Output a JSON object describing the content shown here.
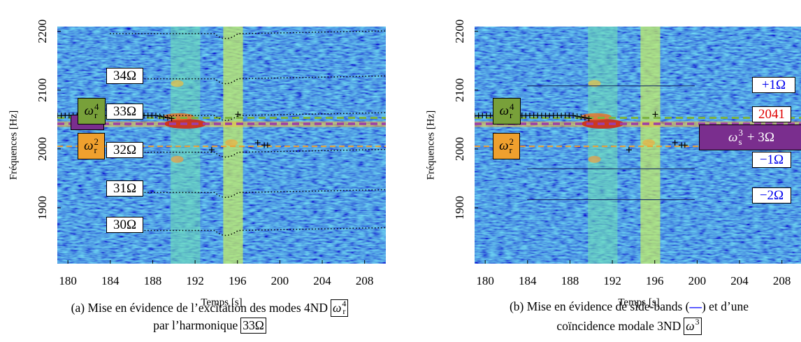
{
  "panels": [
    {
      "xlabel": "Temps [s]",
      "ylabel": "Fréquences [Hz]",
      "xlim": [
        179,
        210
      ],
      "ylim": [
        1805,
        2208
      ],
      "xticks": [
        180,
        184,
        188,
        192,
        196,
        200,
        204,
        208
      ],
      "yticks": [
        1900,
        2000,
        2100,
        2200
      ],
      "annotations": [
        "34Ω",
        "33Ω",
        "32Ω",
        "31Ω",
        "30Ω",
        {
          "base": "ω",
          "sub": "r",
          "sup": "4"
        },
        {
          "base": "ω",
          "sub": "r",
          "sup": "2"
        }
      ],
      "caption": [
        [
          "(a) Mise en évidence de l’excitation des modes 4ND",
          {
            "base": "ω",
            "sub": "r",
            "sup": "4"
          }
        ],
        [
          "par l’harmonique",
          {
            "boxed": "33Ω"
          }
        ]
      ]
    },
    {
      "xlabel": "Temps [s]",
      "ylabel": "Fréquences [Hz]",
      "xlim": [
        179,
        210
      ],
      "ylim": [
        1805,
        2208
      ],
      "xticks": [
        180,
        184,
        188,
        192,
        196,
        200,
        204,
        208
      ],
      "yticks": [
        1900,
        2000,
        2100,
        2200
      ],
      "annotations": [
        "+1Ω",
        2041,
        "−1Ω",
        "−2Ω",
        {
          "base": "ω",
          "sub": "s",
          "sup": "3",
          "suffix": "+ 3Ω"
        },
        {
          "base": "ω",
          "sub": "r",
          "sup": "4"
        },
        {
          "base": "ω",
          "sub": "r",
          "sup": "2"
        }
      ],
      "caption": [
        [
          "(b) Mise en évidence de side-bands (",
          {
            "text": "—",
            "color": "#0000ff"
          },
          ") et d’une"
        ],
        [
          "coïncidence modale 3ND",
          {
            "base": "ω",
            "sup": "3"
          }
        ]
      ]
    }
  ]
}
